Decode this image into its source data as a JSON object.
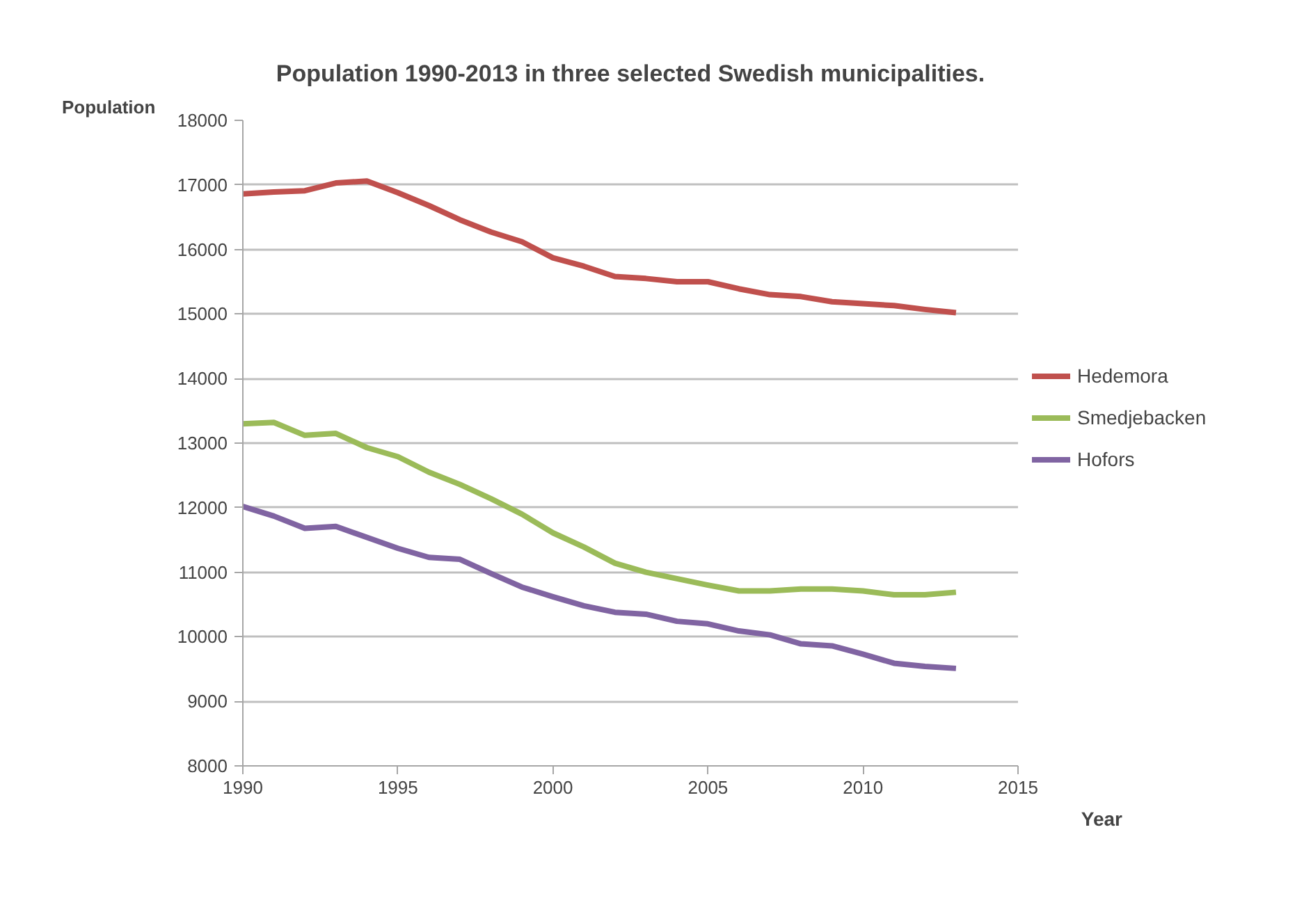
{
  "chart_data": {
    "type": "line",
    "title": "Population 1990-2013 in three selected Swedish municipalities.",
    "xlabel": "Year",
    "ylabel": "Population",
    "x": [
      1990,
      1991,
      1992,
      1993,
      1994,
      1995,
      1996,
      1997,
      1998,
      1999,
      2000,
      2001,
      2002,
      2003,
      2004,
      2005,
      2006,
      2007,
      2008,
      2009,
      2010,
      2011,
      2012,
      2013
    ],
    "series": [
      {
        "name": "Hedemora",
        "color": "#c0504d",
        "values": [
          16860,
          16890,
          16910,
          17030,
          17060,
          16880,
          16680,
          16460,
          16270,
          16120,
          15870,
          15740,
          15580,
          15550,
          15500,
          15500,
          15390,
          15300,
          15270,
          15190,
          15160,
          15130,
          15070,
          15020
        ]
      },
      {
        "name": "Smedjebacken",
        "color": "#9bbb59",
        "values": [
          13300,
          13320,
          13120,
          13150,
          12930,
          12790,
          12550,
          12360,
          12140,
          11900,
          11610,
          11390,
          11140,
          11000,
          10900,
          10800,
          10710,
          10710,
          10740,
          10740,
          10710,
          10650,
          10650,
          10690
        ]
      },
      {
        "name": "Hofors",
        "color": "#8064a2",
        "values": [
          12020,
          11870,
          11680,
          11710,
          11540,
          11370,
          11230,
          11200,
          10980,
          10770,
          10620,
          10480,
          10380,
          10350,
          10240,
          10200,
          10090,
          10030,
          9890,
          9860,
          9730,
          9590,
          9540,
          9510
        ]
      }
    ],
    "xlim": [
      1990,
      2015
    ],
    "ylim": [
      8000,
      18000
    ],
    "xticks": [
      1990,
      1995,
      2000,
      2005,
      2010,
      2015
    ],
    "yticks": [
      8000,
      9000,
      10000,
      11000,
      12000,
      13000,
      14000,
      15000,
      16000,
      17000,
      18000
    ],
    "grid": "y",
    "legend": "right",
    "marker": "none",
    "line_style": "solid"
  }
}
